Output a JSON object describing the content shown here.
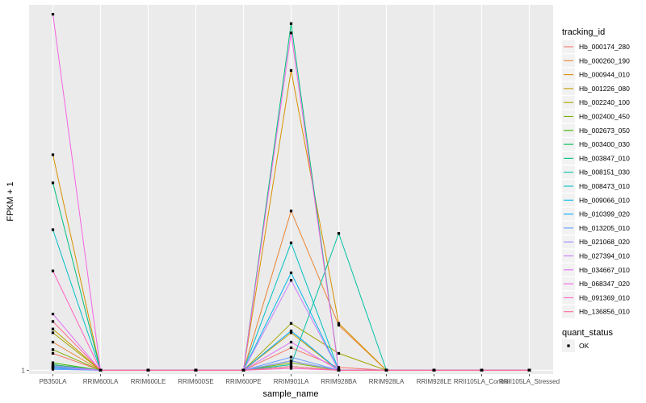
{
  "chart_data": {
    "type": "line",
    "xlabel": "sample_name",
    "ylabel": "FPKM + 1",
    "y_tick_labels": [
      "1"
    ],
    "categories": [
      "PB350LA",
      "RRIM600LA",
      "RRIM600LE",
      "RRIM600SE",
      "RRIM600PE",
      "RRIM901LA",
      "RRIM928BA",
      "RRIM928LA",
      "RRIM928LE",
      "RRII105LA_Control",
      "RRII105LA_Stressed"
    ],
    "legend_title": "tracking_id",
    "legend_position": "right",
    "ylim": [
      0.8,
      20.5
    ],
    "grid": true,
    "series": [
      {
        "name": "Hb_000174_280",
        "color": "#F8766D",
        "values": [
          1.9,
          1,
          1,
          1,
          1,
          2.2,
          1.15,
          1,
          1,
          1,
          1
        ]
      },
      {
        "name": "Hb_000260_190",
        "color": "#EA8331",
        "values": [
          2.5,
          1,
          1,
          1,
          1,
          9.5,
          3.4,
          1,
          1,
          1,
          1
        ]
      },
      {
        "name": "Hb_000944_010",
        "color": "#D89000",
        "values": [
          12.5,
          1,
          1,
          1,
          1,
          17,
          3.5,
          1,
          1,
          1,
          1
        ]
      },
      {
        "name": "Hb_001226_080",
        "color": "#C09B00",
        "values": [
          3.2,
          1,
          1,
          1,
          1,
          3,
          1,
          1,
          1,
          1,
          1
        ]
      },
      {
        "name": "Hb_002240_100",
        "color": "#A3A500",
        "values": [
          3,
          1,
          1,
          1,
          1,
          3.5,
          1.9,
          1,
          1,
          1,
          1
        ]
      },
      {
        "name": "Hb_002400_450",
        "color": "#7CAE00",
        "values": [
          2.1,
          1,
          1,
          1,
          1,
          1.4,
          1,
          1,
          1,
          1,
          1
        ]
      },
      {
        "name": "Hb_002673_050",
        "color": "#39B600",
        "values": [
          1.4,
          1,
          1,
          1,
          1,
          1.2,
          1,
          1,
          1,
          1,
          1
        ]
      },
      {
        "name": "Hb_003400_030",
        "color": "#00BB4E",
        "values": [
          1.3,
          1,
          1,
          1,
          1,
          1.5,
          1,
          1,
          1,
          1,
          1
        ]
      },
      {
        "name": "Hb_003847_010",
        "color": "#00BF7D",
        "values": [
          11,
          1,
          1,
          1,
          1,
          19.5,
          1,
          1,
          1,
          1,
          1
        ]
      },
      {
        "name": "Hb_008151_030",
        "color": "#00C1A3",
        "values": [
          1.2,
          1,
          1,
          1,
          1,
          1.3,
          8.3,
          1,
          1,
          1,
          1
        ]
      },
      {
        "name": "Hb_008473_010",
        "color": "#00BFC4",
        "values": [
          8.5,
          1,
          1,
          1,
          1,
          7.8,
          1,
          1,
          1,
          1,
          1
        ]
      },
      {
        "name": "Hb_009066_010",
        "color": "#00B8E7",
        "values": [
          1.1,
          1,
          1,
          1,
          1,
          6.2,
          1,
          1,
          1,
          1,
          1
        ]
      },
      {
        "name": "Hb_010399_020",
        "color": "#00A9FF",
        "values": [
          1.15,
          1,
          1,
          1,
          1,
          3.1,
          1,
          1,
          1,
          1,
          1
        ]
      },
      {
        "name": "Hb_013205_010",
        "color": "#619CFF",
        "values": [
          1.05,
          1,
          1,
          1,
          1,
          1.7,
          1,
          1,
          1,
          1,
          1
        ]
      },
      {
        "name": "Hb_021068_020",
        "color": "#9C8DFF",
        "values": [
          1.25,
          1,
          1,
          1,
          1,
          1.5,
          1,
          1,
          1,
          1,
          1
        ]
      },
      {
        "name": "Hb_027394_010",
        "color": "#C77CFF",
        "values": [
          1.15,
          1,
          1,
          1,
          1,
          5.8,
          1,
          1,
          1,
          1,
          1
        ]
      },
      {
        "name": "Hb_034667_010",
        "color": "#E36EF6",
        "values": [
          4,
          1,
          1,
          1,
          1,
          2.5,
          1,
          1,
          1,
          1,
          1
        ]
      },
      {
        "name": "Hb_068347_020",
        "color": "#F564E3",
        "values": [
          20,
          1,
          1,
          1,
          1,
          19,
          1,
          1,
          1,
          1,
          1
        ]
      },
      {
        "name": "Hb_091369_010",
        "color": "#FF61C3",
        "values": [
          6.3,
          1,
          1,
          1,
          1,
          1.1,
          1,
          1,
          1,
          1,
          1
        ]
      },
      {
        "name": "Hb_136856_010",
        "color": "#FF6C91",
        "values": [
          3.6,
          1,
          1,
          1,
          1,
          1.2,
          1,
          1,
          1,
          1,
          1
        ]
      }
    ],
    "point_legend_title": "quant_status",
    "point_legend_entries": [
      "OK"
    ],
    "panel_bg": "#EBEBEB",
    "grid_color": "#FFFFFF"
  }
}
